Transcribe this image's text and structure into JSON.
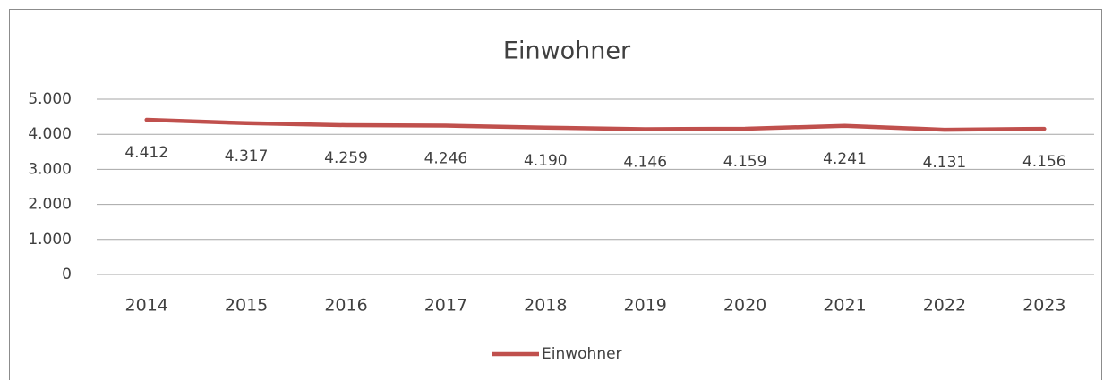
{
  "chart_data": {
    "type": "line",
    "title": "Einwohner",
    "categories": [
      "2014",
      "2015",
      "2016",
      "2017",
      "2018",
      "2019",
      "2020",
      "2021",
      "2022",
      "2023"
    ],
    "series": [
      {
        "name": "Einwohner",
        "color": "#c0504d",
        "values": [
          4412,
          4317,
          4259,
          4246,
          4190,
          4146,
          4159,
          4241,
          4131,
          4156
        ],
        "value_labels": [
          "4.412",
          "4.317",
          "4.259",
          "4.246",
          "4.190",
          "4.146",
          "4.159",
          "4.241",
          "4.131",
          "4.156"
        ]
      }
    ],
    "ylim": [
      0,
      5000
    ],
    "yticks": [
      0,
      {
        "value": 1000,
        "label": "1.000"
      },
      {
        "value": 2000,
        "label": "2.000"
      },
      {
        "value": 3000,
        "label": "3.000"
      },
      {
        "value": 4000,
        "label": "4.000"
      },
      {
        "value": 5000,
        "label": "5.000"
      }
    ],
    "grid": true,
    "legend": "bottom"
  }
}
